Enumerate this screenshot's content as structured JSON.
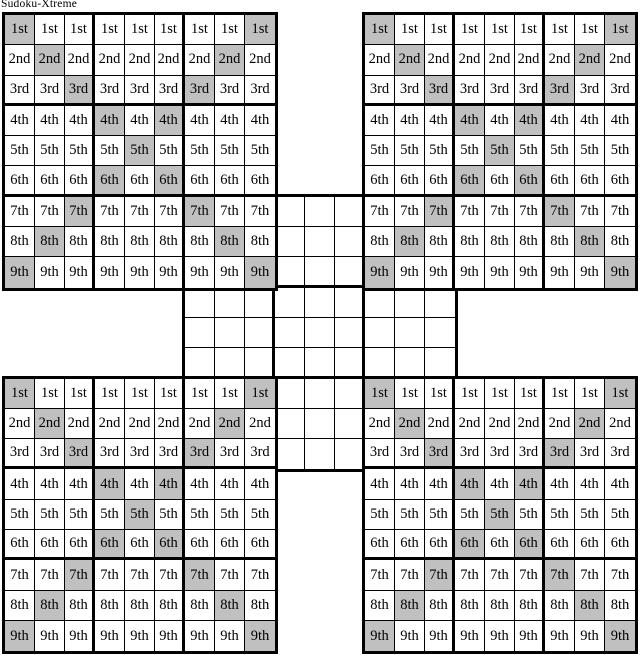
{
  "title": "Sudoku-Xtreme",
  "board": {
    "row_labels": [
      "1st",
      "2nd",
      "3rd",
      "4th",
      "5th",
      "6th",
      "7th",
      "8th",
      "9th"
    ],
    "shading": {
      "description": "both diagonals shaded (X pattern)",
      "shaded_cols_by_row": [
        [
          1,
          9
        ],
        [
          2,
          8
        ],
        [
          3,
          7
        ],
        [
          4,
          6
        ],
        [
          5
        ],
        [
          4,
          6
        ],
        [
          3,
          7
        ],
        [
          2,
          8
        ],
        [
          1,
          9
        ]
      ]
    },
    "grids": [
      {
        "id": "center",
        "origin_row": 7,
        "origin_col": 7,
        "filled": false,
        "shaded": false
      },
      {
        "id": "top-left",
        "origin_row": 1,
        "origin_col": 1,
        "filled": true,
        "shaded": true
      },
      {
        "id": "top-right",
        "origin_row": 1,
        "origin_col": 13,
        "filled": true,
        "shaded": true
      },
      {
        "id": "bottom-left",
        "origin_row": 13,
        "origin_col": 1,
        "filled": true,
        "shaded": true
      },
      {
        "id": "bottom-right",
        "origin_row": 13,
        "origin_col": 13,
        "filled": true,
        "shaded": true
      }
    ]
  },
  "colors": {
    "shaded_cell": "#c0c0c0",
    "grid_line": "#000000",
    "cell_background": "#ffffff",
    "text": "#000000",
    "page_background": "#ffffff"
  }
}
